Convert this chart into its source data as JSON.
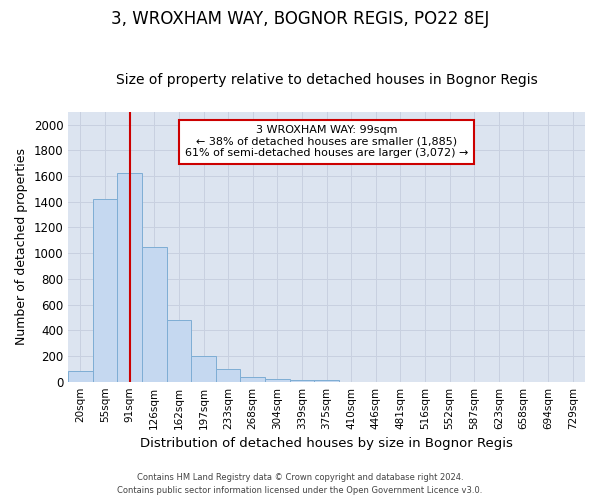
{
  "title": "3, WROXHAM WAY, BOGNOR REGIS, PO22 8EJ",
  "subtitle": "Size of property relative to detached houses in Bognor Regis",
  "xlabel": "Distribution of detached houses by size in Bognor Regis",
  "ylabel": "Number of detached properties",
  "footer_line1": "Contains HM Land Registry data © Crown copyright and database right 2024.",
  "footer_line2": "Contains public sector information licensed under the Open Government Licence v3.0.",
  "categories": [
    "20sqm",
    "55sqm",
    "91sqm",
    "126sqm",
    "162sqm",
    "197sqm",
    "233sqm",
    "268sqm",
    "304sqm",
    "339sqm",
    "375sqm",
    "410sqm",
    "446sqm",
    "481sqm",
    "516sqm",
    "552sqm",
    "587sqm",
    "623sqm",
    "658sqm",
    "694sqm",
    "729sqm"
  ],
  "values": [
    80,
    1420,
    1620,
    1050,
    480,
    200,
    100,
    35,
    20,
    15,
    10,
    0,
    0,
    0,
    0,
    0,
    0,
    0,
    0,
    0,
    0
  ],
  "bar_color": "#c5d8f0",
  "bar_edge_color": "#7eadd4",
  "red_line_x": 2,
  "annotation_text": "3 WROXHAM WAY: 99sqm\n← 38% of detached houses are smaller (1,885)\n61% of semi-detached houses are larger (3,072) →",
  "annotation_box_color": "#ffffff",
  "annotation_box_edge": "#cc0000",
  "red_line_color": "#cc0000",
  "ylim": [
    0,
    2100
  ],
  "yticks": [
    0,
    200,
    400,
    600,
    800,
    1000,
    1200,
    1400,
    1600,
    1800,
    2000
  ],
  "grid_color": "#c8d0e0",
  "bg_color": "#dce4f0",
  "fig_bg_color": "#ffffff",
  "title_fontsize": 12,
  "subtitle_fontsize": 10,
  "xlabel_fontsize": 9.5,
  "ylabel_fontsize": 9
}
